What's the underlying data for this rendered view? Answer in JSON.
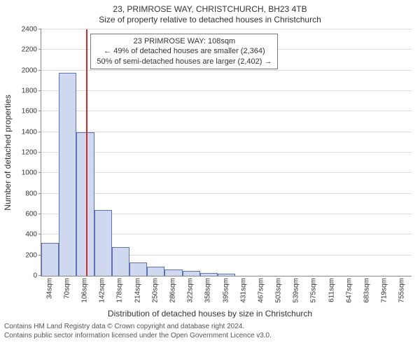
{
  "title": {
    "line1": "23, PRIMROSE WAY, CHRISTCHURCH, BH23 4TB",
    "line2": "Size of property relative to detached houses in Christchurch"
  },
  "ylabel": "Number of detached properties",
  "xlabel": "Distribution of detached houses by size in Christchurch",
  "footer": {
    "line1": "Contains HM Land Registry data © Crown copyright and database right 2024.",
    "line2": "Contains public sector information licensed under the Open Government Licence v3.0."
  },
  "chart": {
    "type": "histogram",
    "ylim": [
      0,
      2400
    ],
    "ytick_step": 200,
    "yticks": [
      0,
      200,
      400,
      600,
      800,
      1000,
      1200,
      1400,
      1600,
      1800,
      2000,
      2200,
      2400
    ],
    "xticks": [
      "34sqm",
      "70sqm",
      "106sqm",
      "142sqm",
      "178sqm",
      "214sqm",
      "250sqm",
      "286sqm",
      "322sqm",
      "358sqm",
      "395sqm",
      "431sqm",
      "467sqm",
      "503sqm",
      "539sqm",
      "575sqm",
      "611sqm",
      "647sqm",
      "683sqm",
      "719sqm",
      "755sqm"
    ],
    "bar_fill": "#cfd8ef",
    "bar_border": "#5b72b5",
    "grid_color": "#dddddd",
    "background_color": "#ffffff",
    "values": [
      320,
      1980,
      1400,
      640,
      280,
      130,
      90,
      60,
      45,
      30,
      20,
      0,
      0,
      0,
      0,
      0,
      0,
      0,
      0,
      0,
      0
    ],
    "marker": {
      "value_sqm": 108,
      "color": "#cc2b2b",
      "info_lines": [
        "23 PRIMROSE WAY: 108sqm",
        "← 49% of detached houses are smaller (2,364)",
        "50% of semi-detached houses are larger (2,402) →"
      ]
    },
    "label_fontsize": 10,
    "axis_label_fontsize": 12,
    "title_fontsize": 12
  }
}
